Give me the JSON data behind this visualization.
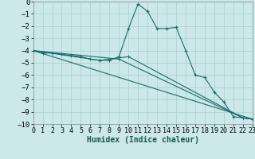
{
  "xlabel": "Humidex (Indice chaleur)",
  "bg_color": "#cce8e8",
  "grid_color": "#aacfcf",
  "line_color": "#1a6b6b",
  "xlim": [
    0,
    23
  ],
  "ylim": [
    -10,
    0
  ],
  "xticks": [
    0,
    1,
    2,
    3,
    4,
    5,
    6,
    7,
    8,
    9,
    10,
    11,
    12,
    13,
    14,
    15,
    16,
    17,
    18,
    19,
    20,
    21,
    22,
    23
  ],
  "yticks": [
    0,
    -1,
    -2,
    -3,
    -4,
    -5,
    -6,
    -7,
    -8,
    -9,
    -10
  ],
  "series": [
    {
      "x": [
        0,
        1,
        2,
        3,
        4,
        5,
        6,
        7,
        8,
        9,
        10,
        11,
        12,
        13,
        14,
        15,
        16,
        17,
        18,
        19,
        20,
        21,
        22,
        23
      ],
      "y": [
        -4.0,
        -4.2,
        -4.2,
        -4.3,
        -4.4,
        -4.5,
        -4.7,
        -4.8,
        -4.8,
        -4.5,
        -2.2,
        -0.2,
        -0.8,
        -2.2,
        -2.2,
        -2.1,
        -4.0,
        -6.0,
        -6.2,
        -7.4,
        -8.2,
        -9.4,
        -9.5,
        -9.6
      ]
    },
    {
      "x": [
        0,
        7,
        10,
        22,
        23
      ],
      "y": [
        -4.0,
        -4.8,
        -4.5,
        -9.5,
        -9.6
      ]
    },
    {
      "x": [
        0,
        9,
        22,
        23
      ],
      "y": [
        -4.0,
        -4.7,
        -9.5,
        -9.6
      ]
    },
    {
      "x": [
        0,
        23
      ],
      "y": [
        -4.0,
        -9.6
      ]
    }
  ]
}
